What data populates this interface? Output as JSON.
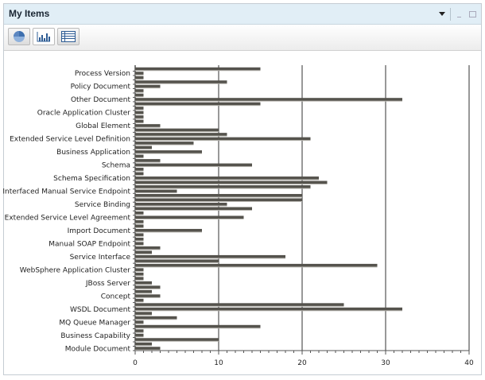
{
  "panel": {
    "title": "My Items",
    "controls": {
      "menu": "dropdown-icon",
      "minimize": "minimize-icon",
      "maximize": "maximize-icon"
    }
  },
  "toolbar": {
    "buttons": [
      {
        "icon": "pie-chart-icon",
        "active": false
      },
      {
        "icon": "bar-chart-icon",
        "active": true
      },
      {
        "icon": "table-icon",
        "active": false
      }
    ]
  },
  "colors": {
    "bar": "#55534d",
    "header": "#e1eef6",
    "grid": "#555555"
  },
  "chart_data": {
    "type": "bar",
    "orientation": "horizontal",
    "categories": [
      "",
      "Process Version",
      "",
      "",
      "Policy Document",
      "",
      "",
      "Other Document",
      "",
      "",
      "Oracle Application Cluster",
      "",
      "",
      "Global Element",
      "",
      "",
      "Extended Service Level Definition",
      "",
      "",
      "Business Application",
      "",
      "",
      "Schema",
      "",
      "",
      "Schema Specification",
      "",
      "",
      "Interfaced Manual Service Endpoint",
      "",
      "",
      "Service Binding",
      "",
      "",
      "Extended Service Level Agreement",
      "",
      "",
      "Import Document",
      "",
      "",
      "Manual SOAP Endpoint",
      "",
      "",
      "Service Interface",
      "",
      "",
      "WebSphere Application Cluster",
      "",
      "",
      "JBoss Server",
      "",
      "",
      "Concept",
      "",
      "",
      "WSDL Document",
      "",
      "",
      "MQ Queue Manager",
      "",
      "",
      "Business Capability",
      "",
      "",
      "Module Document"
    ],
    "values": [
      15,
      1,
      1,
      11,
      3,
      1,
      1,
      32,
      15,
      1,
      1,
      1,
      1,
      3,
      10,
      11,
      21,
      7,
      2,
      8,
      1,
      3,
      14,
      1,
      1,
      22,
      23,
      21,
      5,
      20,
      20,
      11,
      14,
      1,
      13,
      1,
      1,
      8,
      1,
      1,
      1,
      3,
      2,
      18,
      10,
      29,
      1,
      1,
      1,
      2,
      3,
      2,
      3,
      1,
      25,
      32,
      2,
      5,
      1,
      15,
      1,
      1,
      10,
      2,
      3
    ],
    "xlim": [
      0,
      40
    ],
    "xticks": [
      "0",
      "10",
      "20",
      "30",
      "40"
    ],
    "grid": "vertical major lines",
    "legend": "none",
    "title": "",
    "xlabel": "",
    "ylabel": ""
  }
}
